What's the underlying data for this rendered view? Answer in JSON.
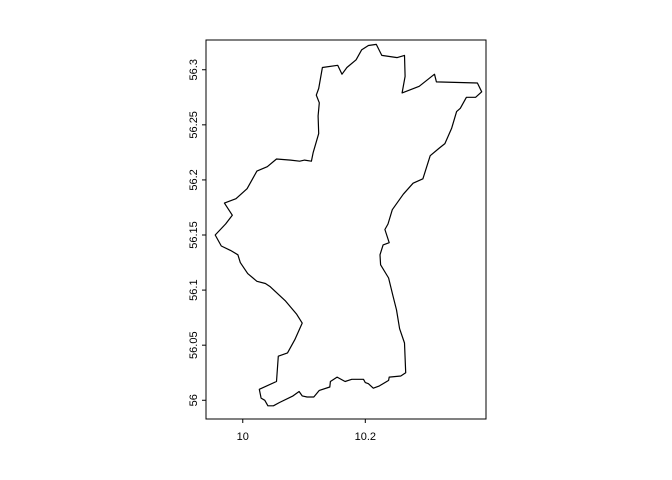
{
  "map": {
    "x_range": [
      9.94,
      10.397
    ],
    "y_range": [
      55.983,
      56.327
    ],
    "x_ticks": [
      {
        "value": 10.0,
        "label": "10"
      },
      {
        "value": 10.2,
        "label": "10.2"
      }
    ],
    "y_ticks": [
      {
        "value": 56.0,
        "label": "56"
      },
      {
        "value": 56.05,
        "label": "56.05"
      },
      {
        "value": 56.1,
        "label": "56.1"
      },
      {
        "value": 56.15,
        "label": "56.15"
      },
      {
        "value": 56.2,
        "label": "56.2"
      },
      {
        "value": 56.25,
        "label": "56.25"
      },
      {
        "value": 56.3,
        "label": "56.3"
      }
    ],
    "outline_color": "#000000",
    "boundary": [
      [
        10.13,
        56.302
      ],
      [
        10.155,
        56.304
      ],
      [
        10.162,
        56.296
      ],
      [
        10.17,
        56.302
      ],
      [
        10.185,
        56.309
      ],
      [
        10.194,
        56.318
      ],
      [
        10.205,
        56.322
      ],
      [
        10.218,
        56.323
      ],
      [
        10.227,
        56.313
      ],
      [
        10.252,
        56.311
      ],
      [
        10.264,
        56.313
      ],
      [
        10.265,
        56.294
      ],
      [
        10.26,
        56.279
      ],
      [
        10.288,
        56.285
      ],
      [
        10.313,
        56.296
      ],
      [
        10.316,
        56.289
      ],
      [
        10.383,
        56.288
      ],
      [
        10.39,
        56.28
      ],
      [
        10.38,
        56.275
      ],
      [
        10.365,
        56.275
      ],
      [
        10.355,
        56.265
      ],
      [
        10.349,
        56.262
      ],
      [
        10.341,
        56.247
      ],
      [
        10.33,
        56.233
      ],
      [
        10.321,
        56.229
      ],
      [
        10.306,
        56.222
      ],
      [
        10.294,
        56.201
      ],
      [
        10.278,
        56.197
      ],
      [
        10.262,
        56.187
      ],
      [
        10.244,
        56.173
      ],
      [
        10.237,
        56.16
      ],
      [
        10.232,
        56.155
      ],
      [
        10.239,
        56.143
      ],
      [
        10.229,
        56.141
      ],
      [
        10.224,
        56.132
      ],
      [
        10.225,
        56.123
      ],
      [
        10.238,
        56.111
      ],
      [
        10.245,
        56.095
      ],
      [
        10.251,
        56.082
      ],
      [
        10.256,
        56.065
      ],
      [
        10.264,
        56.052
      ],
      [
        10.266,
        56.025
      ],
      [
        10.258,
        56.022
      ],
      [
        10.239,
        56.021
      ],
      [
        10.238,
        56.018
      ],
      [
        10.223,
        56.013
      ],
      [
        10.213,
        56.011
      ],
      [
        10.205,
        56.015
      ],
      [
        10.2,
        56.016
      ],
      [
        10.197,
        56.019
      ],
      [
        10.178,
        56.019
      ],
      [
        10.167,
        56.017
      ],
      [
        10.154,
        56.021
      ],
      [
        10.143,
        56.017
      ],
      [
        10.142,
        56.012
      ],
      [
        10.125,
        56.009
      ],
      [
        10.116,
        56.003
      ],
      [
        10.105,
        56.003
      ],
      [
        10.097,
        56.004
      ],
      [
        10.092,
        56.008
      ],
      [
        10.082,
        56.004
      ],
      [
        10.06,
        55.998
      ],
      [
        10.05,
        55.995
      ],
      [
        10.041,
        55.995
      ],
      [
        10.036,
        56.0
      ],
      [
        10.03,
        56.002
      ],
      [
        10.027,
        56.01
      ],
      [
        10.055,
        56.017
      ],
      [
        10.058,
        56.04
      ],
      [
        10.073,
        56.043
      ],
      [
        10.085,
        56.055
      ],
      [
        10.097,
        56.07
      ],
      [
        10.088,
        56.078
      ],
      [
        10.07,
        56.09
      ],
      [
        10.045,
        56.103
      ],
      [
        10.037,
        56.106
      ],
      [
        10.023,
        56.108
      ],
      [
        10.008,
        56.115
      ],
      [
        9.996,
        56.125
      ],
      [
        9.992,
        56.132
      ],
      [
        9.98,
        56.136
      ],
      [
        9.965,
        56.14
      ],
      [
        9.955,
        56.15
      ],
      [
        9.972,
        56.16
      ],
      [
        9.983,
        56.168
      ],
      [
        9.97,
        56.179
      ],
      [
        9.989,
        56.183
      ],
      [
        10.007,
        56.192
      ],
      [
        10.023,
        56.208
      ],
      [
        10.04,
        56.212
      ],
      [
        10.055,
        56.219
      ],
      [
        10.078,
        56.218
      ],
      [
        10.093,
        56.217
      ],
      [
        10.101,
        56.218
      ],
      [
        10.112,
        56.217
      ],
      [
        10.115,
        56.225
      ],
      [
        10.124,
        56.242
      ],
      [
        10.123,
        56.258
      ],
      [
        10.125,
        56.27
      ],
      [
        10.12,
        56.277
      ],
      [
        10.124,
        56.283
      ]
    ]
  }
}
